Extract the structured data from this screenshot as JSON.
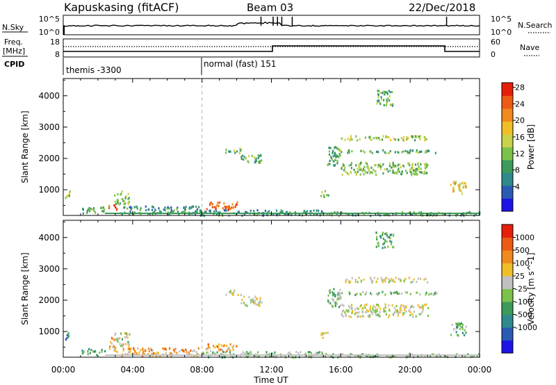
{
  "header": {
    "station": "Kapuskasing (fitACF)",
    "beam": "Beam 03",
    "date": "22/Dec/2018"
  },
  "strip_nsky": {
    "label": "N.Sky",
    "right_label": "N.Search",
    "ticks_left": [
      "10^5",
      "10^0"
    ],
    "ticks_right": [
      "10^5",
      "10^0"
    ]
  },
  "strip_freq": {
    "label_line1": "Freq.",
    "label_line2": "[MHz]",
    "right_label": "Nave",
    "ticks_left": [
      "18",
      "8"
    ],
    "ticks_right": [
      "60",
      "0"
    ]
  },
  "cpid": {
    "label": "CPID",
    "segments": [
      {
        "start_hour": 0,
        "text": "themis -3300"
      },
      {
        "start_hour": 8,
        "text": "normal (fast) 151"
      }
    ]
  },
  "time_axis": {
    "label": "Time UT",
    "ticks": [
      "00:00",
      "04:00",
      "08:00",
      "12:00",
      "16:00",
      "20:00",
      "00:00"
    ]
  },
  "panel_ylabel": "Slant Range [km]",
  "chart_data": [
    {
      "type": "heatmap",
      "name": "power",
      "xlabel": "Time UT",
      "ylabel": "Slant Range [km]",
      "xlim": [
        0,
        24
      ],
      "ylim": [
        180,
        4550
      ],
      "yticks": [
        1000,
        2000,
        3000,
        4000
      ],
      "colorbar": {
        "label": "Power [dB]",
        "ticks": [
          "4",
          "8",
          "12",
          "16",
          "20",
          "24",
          "28"
        ],
        "colors": [
          "#1e14e6",
          "#2a5ab4",
          "#2e8a8c",
          "#3c9a5a",
          "#7cc24a",
          "#c8d24a",
          "#f0be28",
          "#f08a1e",
          "#ec5a14",
          "#e61e0a"
        ]
      },
      "regions": [
        {
          "t0": 0.1,
          "t1": 0.4,
          "r0": 750,
          "r1": 1050,
          "level": 0.5
        },
        {
          "t0": 1.0,
          "t1": 2.4,
          "r0": 280,
          "r1": 480,
          "level": 0.35
        },
        {
          "t0": 2.6,
          "t1": 3.1,
          "r0": 380,
          "r1": 560,
          "level": 0.9
        },
        {
          "t0": 2.9,
          "t1": 3.8,
          "r0": 550,
          "r1": 980,
          "level": 0.45
        },
        {
          "t0": 3.3,
          "t1": 7.8,
          "r0": 240,
          "r1": 500,
          "level": 0.3
        },
        {
          "t0": 8.2,
          "t1": 10.0,
          "r0": 380,
          "r1": 640,
          "level": 0.85
        },
        {
          "t0": 7.8,
          "t1": 15.0,
          "r0": 200,
          "r1": 380,
          "level": 0.3
        },
        {
          "t0": 9.3,
          "t1": 10.3,
          "r0": 2200,
          "r1": 2350,
          "level": 0.4
        },
        {
          "t0": 10.2,
          "t1": 11.4,
          "r0": 1850,
          "r1": 2150,
          "level": 0.4
        },
        {
          "t0": 14.8,
          "t1": 15.3,
          "r0": 800,
          "r1": 1000,
          "level": 0.45
        },
        {
          "t0": 15.2,
          "t1": 16.0,
          "r0": 1800,
          "r1": 2400,
          "level": 0.35
        },
        {
          "t0": 16.0,
          "t1": 21.0,
          "r0": 1500,
          "r1": 1900,
          "level": 0.45
        },
        {
          "t0": 16.0,
          "t1": 21.0,
          "r0": 2600,
          "r1": 2750,
          "level": 0.5
        },
        {
          "t0": 15.5,
          "t1": 21.5,
          "r0": 2200,
          "r1": 2300,
          "level": 0.4
        },
        {
          "t0": 18.0,
          "t1": 19.0,
          "r0": 3700,
          "r1": 4200,
          "level": 0.4
        },
        {
          "t0": 22.3,
          "t1": 23.2,
          "r0": 900,
          "r1": 1300,
          "level": 0.6
        },
        {
          "t0": 15.0,
          "t1": 24.0,
          "r0": 200,
          "r1": 320,
          "level": 0.35
        }
      ]
    },
    {
      "type": "heatmap",
      "name": "velocity",
      "xlabel": "Time UT",
      "ylabel": "Slant Range [km]",
      "xlim": [
        0,
        24
      ],
      "ylim": [
        180,
        4550
      ],
      "yticks": [
        1000,
        2000,
        3000,
        4000
      ],
      "colorbar": {
        "label": "Velocity [m s^-1]",
        "ticks": [
          "1000",
          "500",
          "100",
          "25",
          "-25",
          "-100",
          "-500",
          "-1000"
        ],
        "colors": [
          "#1e14e6",
          "#2a5ab4",
          "#2e8a8c",
          "#3c9a5a",
          "#7cc24a",
          "#c0c0c0",
          "#f0be28",
          "#f08a1e",
          "#ec5a14",
          "#e61e0a"
        ]
      },
      "regions": [
        {
          "t0": 0.1,
          "t1": 0.4,
          "r0": 750,
          "r1": 1050,
          "level": 0.3
        },
        {
          "t0": 1.0,
          "t1": 2.4,
          "r0": 280,
          "r1": 480,
          "level": 0.4
        },
        {
          "t0": 2.6,
          "t1": 3.1,
          "r0": 380,
          "r1": 860,
          "level": 0.68
        },
        {
          "t0": 2.9,
          "t1": 3.8,
          "r0": 550,
          "r1": 980,
          "level": 0.5
        },
        {
          "t0": 3.3,
          "t1": 7.8,
          "r0": 240,
          "r1": 500,
          "level": 0.7
        },
        {
          "t0": 8.2,
          "t1": 10.0,
          "r0": 380,
          "r1": 640,
          "level": 0.68
        },
        {
          "t0": 7.8,
          "t1": 15.0,
          "r0": 200,
          "r1": 380,
          "level": 0.45
        },
        {
          "t0": 9.3,
          "t1": 10.3,
          "r0": 2200,
          "r1": 2350,
          "level": 0.55
        },
        {
          "t0": 10.2,
          "t1": 11.4,
          "r0": 1850,
          "r1": 2150,
          "level": 0.55
        },
        {
          "t0": 14.8,
          "t1": 15.3,
          "r0": 800,
          "r1": 1000,
          "level": 0.55
        },
        {
          "t0": 15.2,
          "t1": 16.0,
          "r0": 1800,
          "r1": 2400,
          "level": 0.45
        },
        {
          "t0": 16.0,
          "t1": 21.0,
          "r0": 1500,
          "r1": 1900,
          "level": 0.55
        },
        {
          "t0": 16.0,
          "t1": 21.0,
          "r0": 2600,
          "r1": 2750,
          "level": 0.55
        },
        {
          "t0": 15.5,
          "t1": 21.5,
          "r0": 2200,
          "r1": 2300,
          "level": 0.45
        },
        {
          "t0": 18.0,
          "t1": 19.0,
          "r0": 3700,
          "r1": 4200,
          "level": 0.35
        },
        {
          "t0": 22.3,
          "t1": 23.2,
          "r0": 900,
          "r1": 1300,
          "level": 0.4
        },
        {
          "t0": 15.0,
          "t1": 24.0,
          "r0": 200,
          "r1": 320,
          "level": 0.45
        }
      ]
    }
  ]
}
